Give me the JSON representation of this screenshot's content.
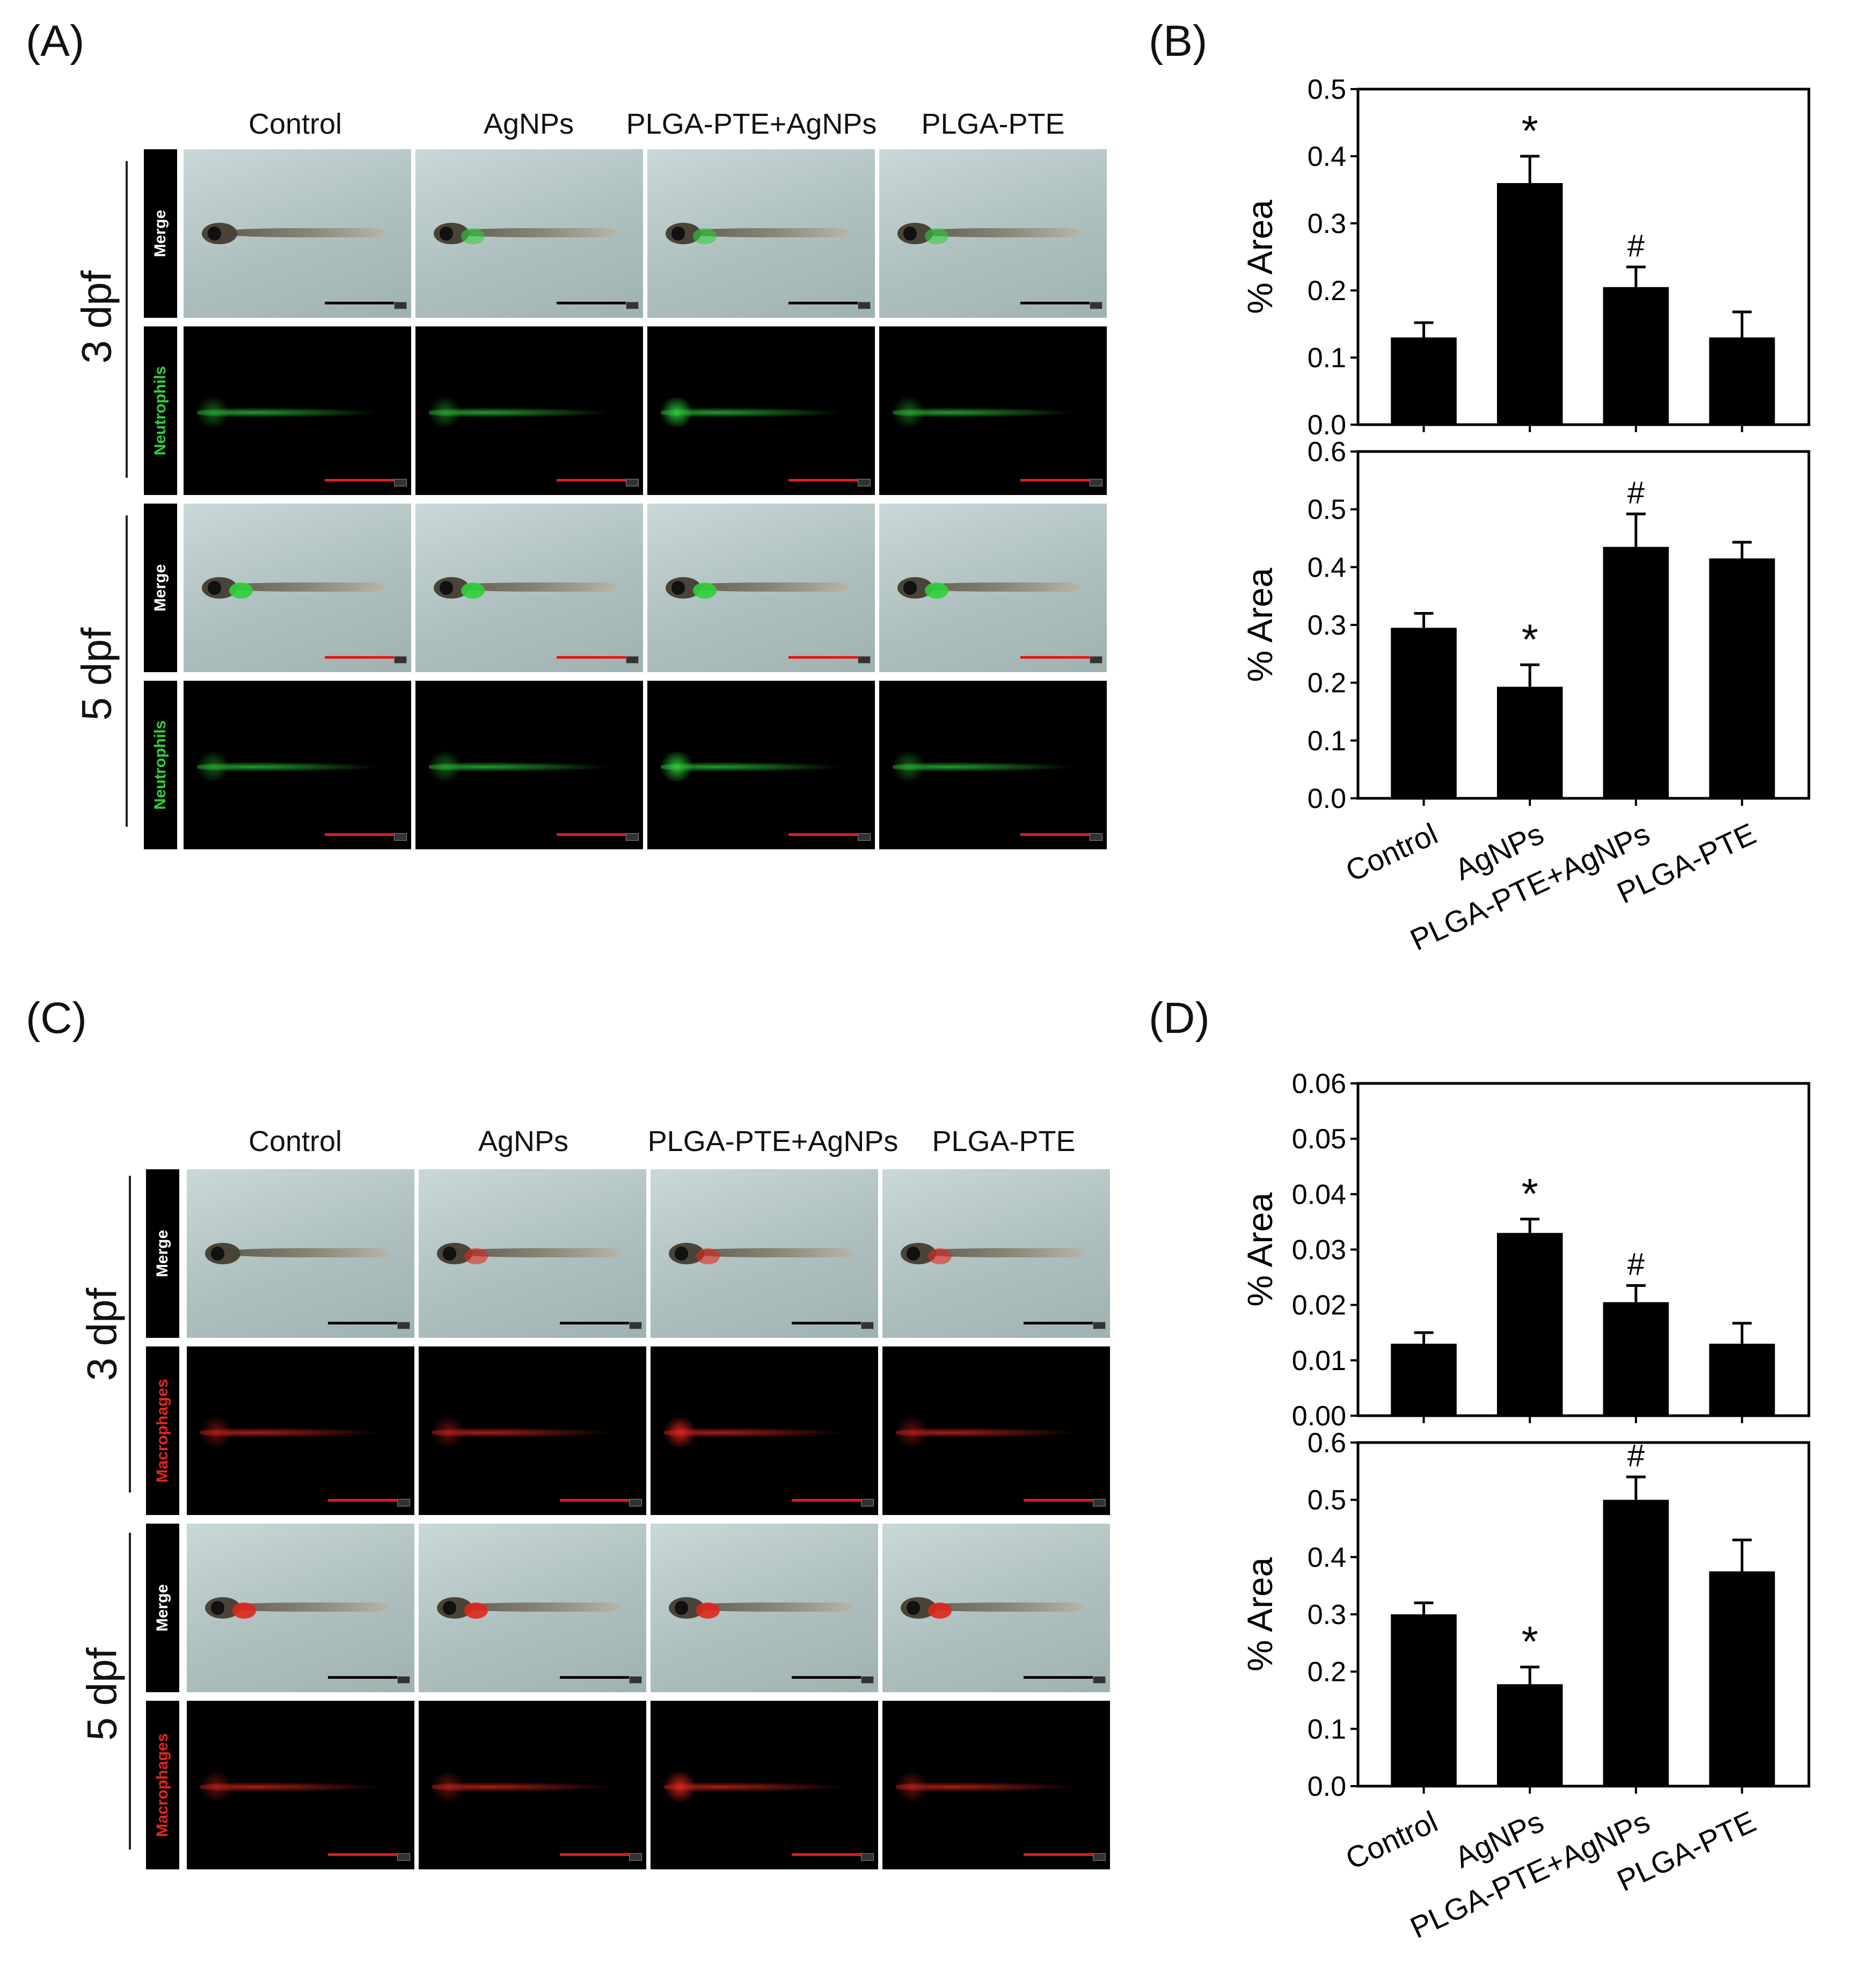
{
  "panels": {
    "a": "(A)",
    "b": "(B)",
    "c": "(C)",
    "d": "(D)"
  },
  "groups": [
    "Control",
    "AgNPs",
    "PLGA-PTE+AgNPs",
    "PLGA-PTE"
  ],
  "rows": {
    "dpf3": "3 dpf",
    "dpf5": "5 dpf",
    "merge": "Merge",
    "neutrophils": "Neutrophils",
    "macrophages": "Macrophages"
  },
  "colors": {
    "neutrophil_green": "#2fd13a",
    "macrophage_red": "#e0261e",
    "scale_black": "#000000",
    "scale_red": "#e01b1b"
  },
  "chart_data": [
    {
      "id": "B-top",
      "type": "bar",
      "categories": [
        "Control",
        "AgNPs",
        "PLGA-PTE+AgNPs",
        "PLGA-PTE"
      ],
      "values": [
        0.13,
        0.36,
        0.205,
        0.13
      ],
      "errors": [
        0.022,
        0.04,
        0.03,
        0.038
      ],
      "ylabel": "% Area",
      "ylim": [
        0,
        0.5
      ],
      "yticks": [
        "0.0",
        "0.1",
        "0.2",
        "0.3",
        "0.4",
        "0.5"
      ],
      "annotations": [
        "",
        "*",
        "#",
        ""
      ]
    },
    {
      "id": "B-bottom",
      "type": "bar",
      "categories": [
        "Control",
        "AgNPs",
        "PLGA-PTE+AgNPs",
        "PLGA-PTE"
      ],
      "values": [
        0.295,
        0.193,
        0.435,
        0.415
      ],
      "errors": [
        0.025,
        0.038,
        0.057,
        0.028
      ],
      "ylabel": "% Area",
      "ylim": [
        0,
        0.6
      ],
      "yticks": [
        "0.0",
        "0.1",
        "0.2",
        "0.3",
        "0.4",
        "0.5",
        "0.6"
      ],
      "annotations": [
        "",
        "*",
        "#",
        ""
      ]
    },
    {
      "id": "D-top",
      "type": "bar",
      "categories": [
        "Control",
        "AgNPs",
        "PLGA-PTE+AgNPs",
        "PLGA-PTE"
      ],
      "values": [
        0.013,
        0.033,
        0.0205,
        0.013
      ],
      "errors": [
        0.002,
        0.0025,
        0.003,
        0.0037
      ],
      "ylabel": "% Area",
      "ylim": [
        0,
        0.06
      ],
      "yticks": [
        "0.00",
        "0.01",
        "0.02",
        "0.03",
        "0.04",
        "0.05",
        "0.06"
      ],
      "annotations": [
        "",
        "*",
        "#",
        ""
      ]
    },
    {
      "id": "D-bottom",
      "type": "bar",
      "categories": [
        "Control",
        "AgNPs",
        "PLGA-PTE+AgNPs",
        "PLGA-PTE"
      ],
      "values": [
        0.3,
        0.178,
        0.5,
        0.375
      ],
      "errors": [
        0.02,
        0.03,
        0.04,
        0.055
      ],
      "ylabel": "% Area",
      "ylim": [
        0,
        0.6
      ],
      "yticks": [
        "0.0",
        "0.1",
        "0.2",
        "0.3",
        "0.4",
        "0.5",
        "0.6"
      ],
      "annotations": [
        "",
        "*",
        "#",
        ""
      ]
    }
  ]
}
